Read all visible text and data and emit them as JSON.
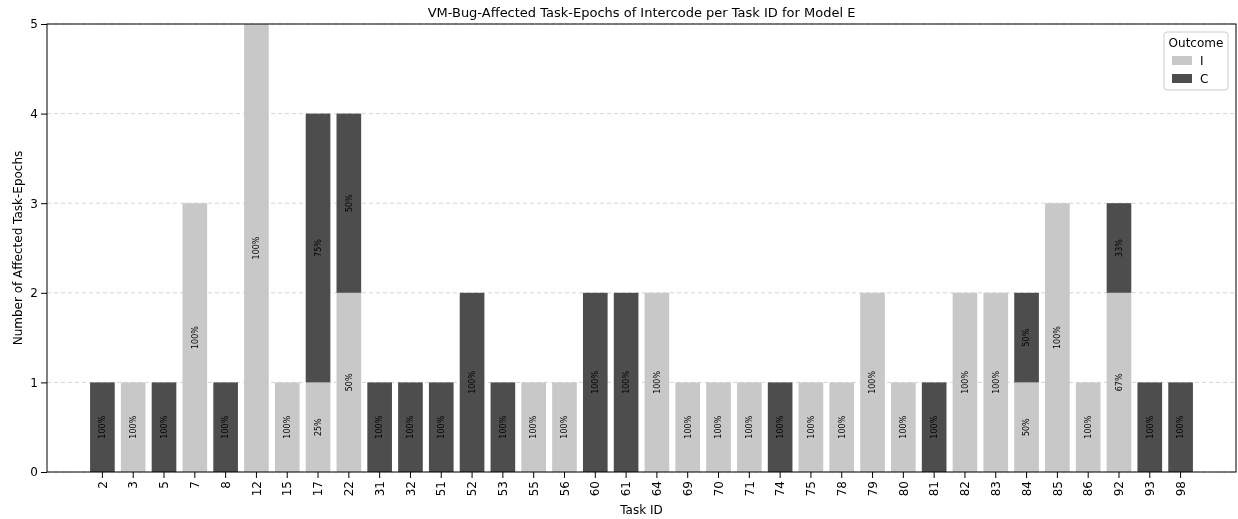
{
  "chart_data": {
    "type": "bar",
    "title": "VM-Bug-Affected Task-Epochs of Intercode per Task ID for Model E",
    "xlabel": "Task ID",
    "ylabel": "Number of Affected Task-Epochs",
    "legend_title": "Outcome",
    "legend": "top right",
    "stacked": true,
    "grid": "y",
    "ylim": [
      0,
      5
    ],
    "yticks": [
      0,
      1,
      2,
      3,
      4,
      5
    ],
    "categories": [
      "2",
      "3",
      "5",
      "7",
      "8",
      "12",
      "15",
      "17",
      "22",
      "31",
      "32",
      "51",
      "52",
      "53",
      "55",
      "56",
      "60",
      "61",
      "64",
      "69",
      "70",
      "71",
      "74",
      "75",
      "78",
      "79",
      "80",
      "81",
      "82",
      "83",
      "84",
      "85",
      "86",
      "92",
      "93",
      "98"
    ],
    "series": [
      {
        "name": "I",
        "color": "#c8c8c8",
        "values": [
          null,
          1,
          null,
          3,
          null,
          5,
          1,
          1,
          2,
          null,
          null,
          null,
          null,
          null,
          1,
          1,
          null,
          null,
          2,
          1,
          1,
          1,
          null,
          1,
          1,
          2,
          1,
          null,
          2,
          2,
          1,
          3,
          1,
          2,
          null,
          null
        ]
      },
      {
        "name": "C",
        "color": "#4d4d4d",
        "values": [
          1,
          null,
          1,
          null,
          1,
          null,
          null,
          3,
          2,
          1,
          1,
          1,
          2,
          1,
          null,
          null,
          2,
          2,
          null,
          null,
          null,
          null,
          1,
          null,
          null,
          null,
          null,
          1,
          null,
          null,
          1,
          null,
          null,
          1,
          1,
          1
        ]
      }
    ],
    "annotations": [
      "100%",
      "100%",
      "100%",
      "100%",
      "100%",
      "100%",
      "100%",
      "25%",
      "75%",
      "50%",
      "50%",
      "100%",
      "100%",
      "100%",
      "100%",
      "100%",
      "100%",
      "100%",
      "100%",
      "100%",
      "100%",
      "100%",
      "100%",
      "100%",
      "100%",
      "100%",
      "100%",
      "100%",
      "100%",
      "100%",
      "100%",
      "100%",
      "50%",
      "50%",
      "100%",
      "100%",
      "67%",
      "33%",
      "100%",
      "100%"
    ]
  }
}
